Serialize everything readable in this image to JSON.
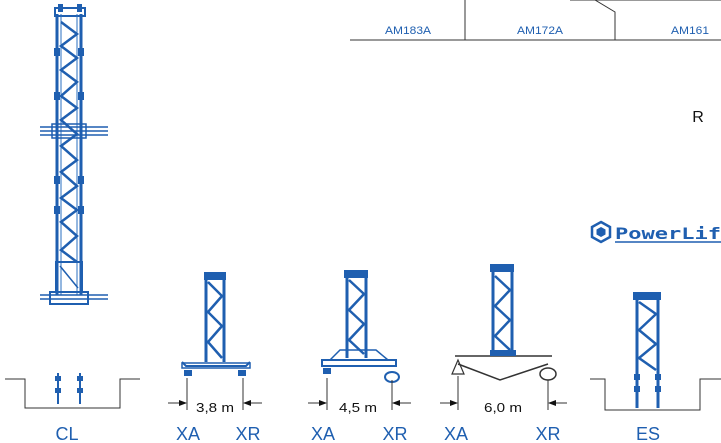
{
  "header": {
    "models": [
      "AM183A",
      "AM172A",
      "AM161"
    ]
  },
  "side_letter": "R",
  "brand": {
    "name": "PowerLif",
    "color": "#1f5fb0"
  },
  "bases": [
    {
      "label": "CL"
    },
    {
      "label": "XA"
    },
    {
      "label": "XR"
    },
    {
      "label": "XA"
    },
    {
      "label": "XR"
    },
    {
      "label": "XA"
    },
    {
      "label": "XR"
    },
    {
      "label": "ES"
    }
  ],
  "dimensions": [
    "3,8 m",
    "4,5 m",
    "6,0 m"
  ],
  "colors": {
    "tower": "#1f5fb0",
    "label": "#1f5fb0",
    "line": "#333333"
  }
}
